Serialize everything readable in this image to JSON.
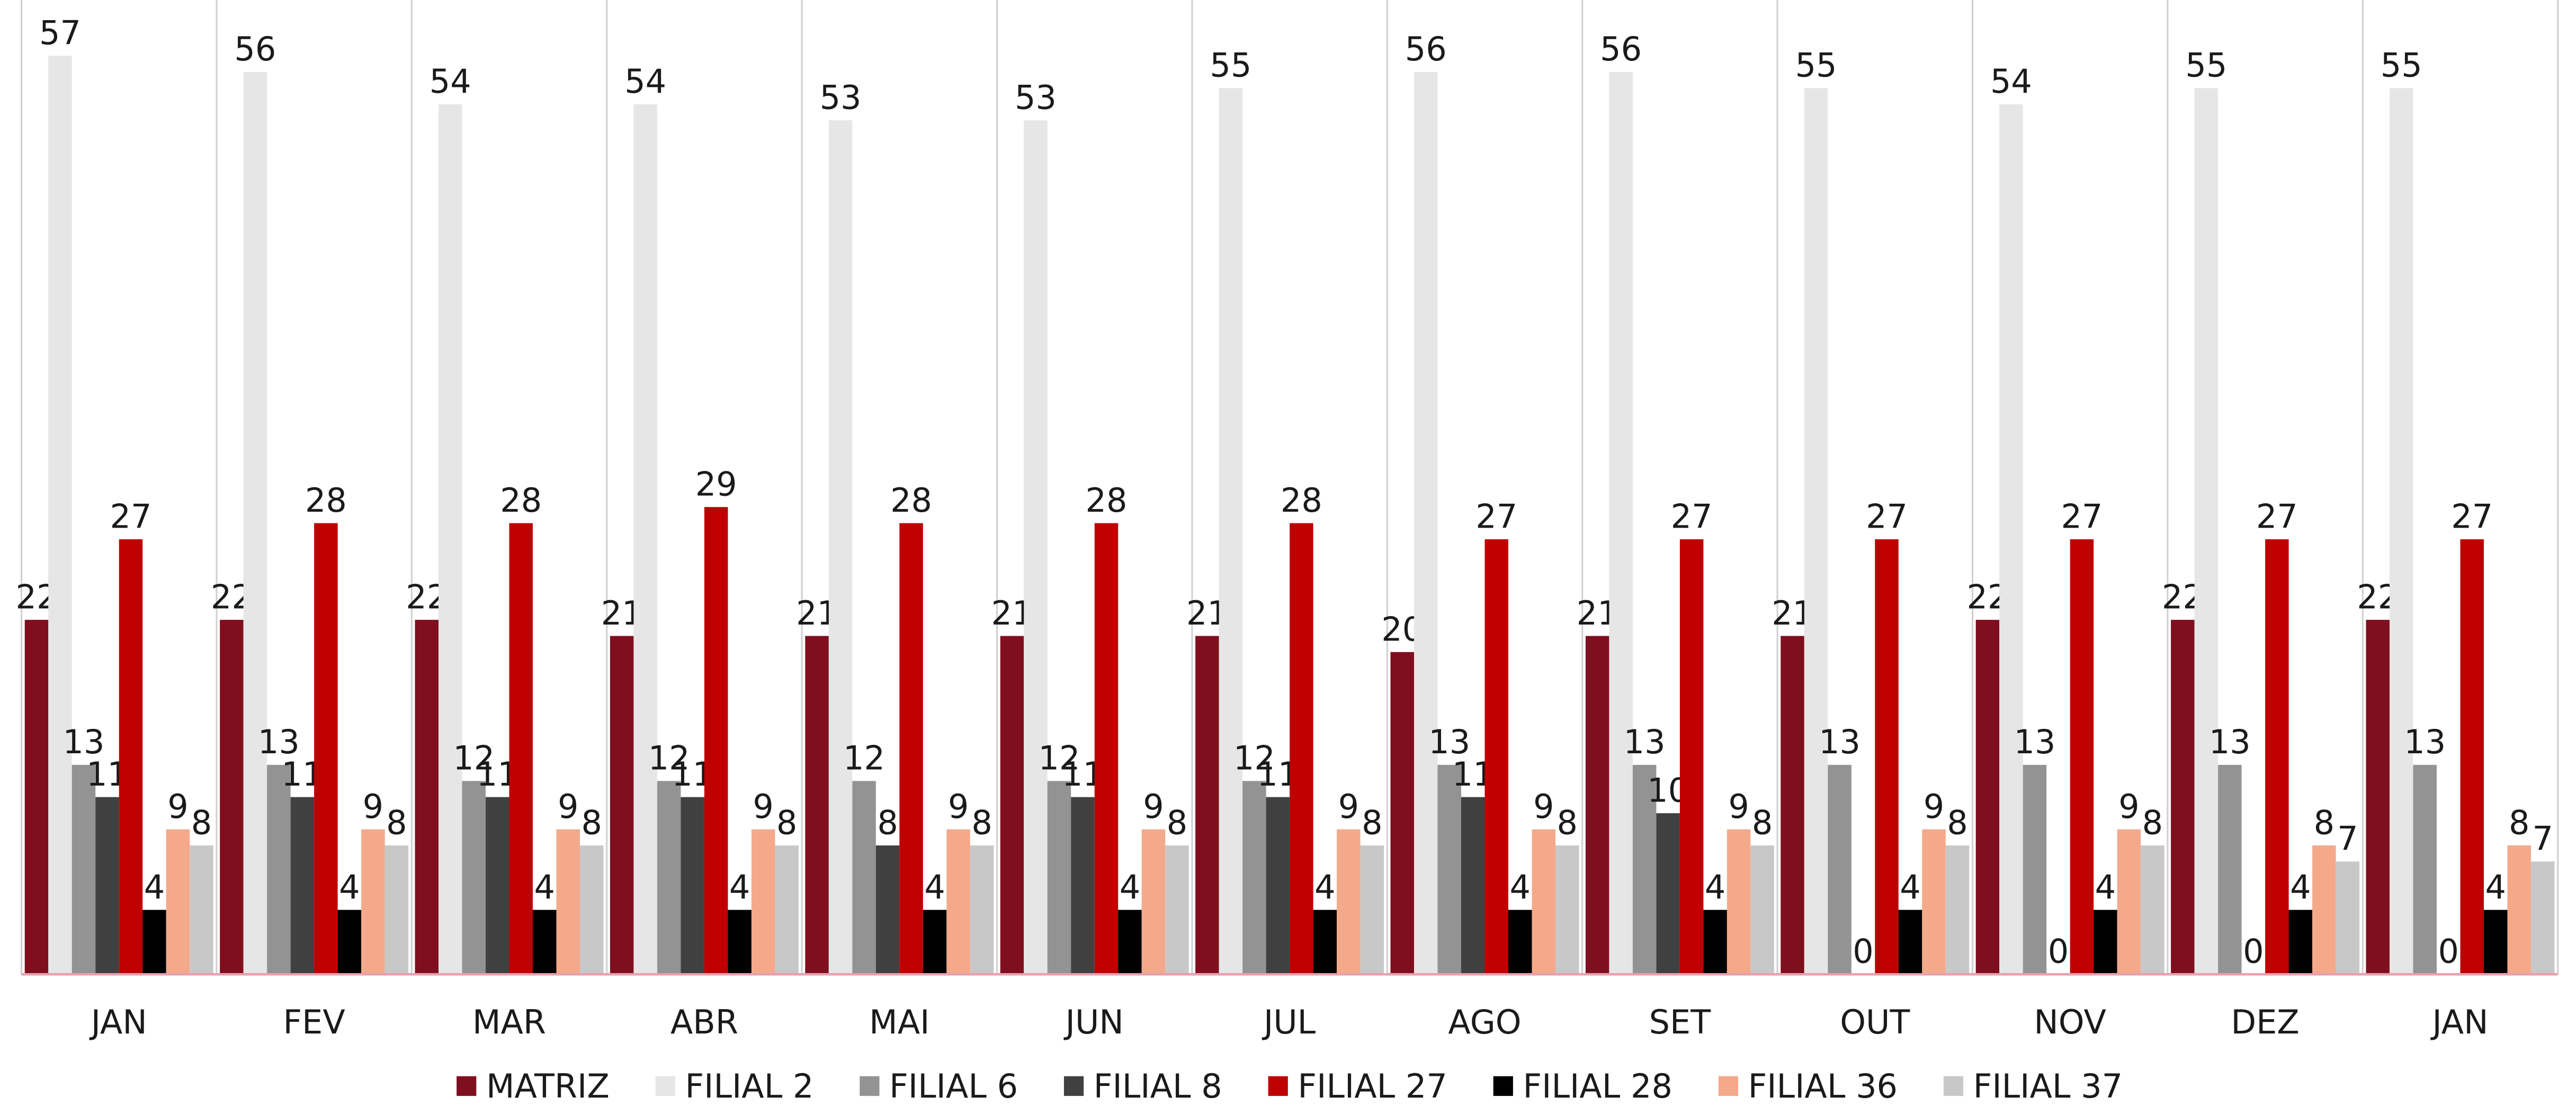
{
  "chart_data": {
    "type": "bar",
    "categories": [
      "JAN",
      "FEV",
      "MAR",
      "ABR",
      "MAI",
      "JUN",
      "JUL",
      "AGO",
      "SET",
      "OUT",
      "NOV",
      "DEZ",
      "JAN"
    ],
    "series": [
      {
        "name": "MATRIZ",
        "color": "#7f0f1e",
        "values": [
          22,
          22,
          22,
          21,
          21,
          21,
          21,
          20,
          21,
          21,
          22,
          22,
          22
        ]
      },
      {
        "name": "FILIAL 2",
        "color": "#e6e6e6",
        "values": [
          57,
          56,
          54,
          54,
          53,
          53,
          55,
          56,
          56,
          55,
          54,
          55,
          55
        ]
      },
      {
        "name": "FILIAL 6",
        "color": "#939393",
        "values": [
          13,
          13,
          12,
          12,
          12,
          12,
          12,
          13,
          13,
          13,
          13,
          13,
          13
        ]
      },
      {
        "name": "FILIAL 8",
        "color": "#404040",
        "values": [
          11,
          11,
          11,
          11,
          8,
          11,
          11,
          11,
          10,
          0,
          0,
          0,
          0
        ]
      },
      {
        "name": "FILIAL 27",
        "color": "#c00000",
        "values": [
          27,
          28,
          28,
          29,
          28,
          28,
          28,
          27,
          27,
          27,
          27,
          27,
          27
        ]
      },
      {
        "name": "FILIAL 28",
        "color": "#000000",
        "values": [
          4,
          4,
          4,
          4,
          4,
          4,
          4,
          4,
          4,
          4,
          4,
          4,
          4
        ]
      },
      {
        "name": "FILIAL 36",
        "color": "#f4a98b",
        "values": [
          9,
          9,
          9,
          9,
          9,
          9,
          9,
          9,
          9,
          9,
          9,
          8,
          8
        ]
      },
      {
        "name": "FILIAL 37",
        "color": "#c8c8c8",
        "values": [
          8,
          8,
          8,
          8,
          8,
          8,
          8,
          8,
          8,
          8,
          8,
          7,
          7
        ]
      }
    ],
    "legend": "bottom"
  }
}
